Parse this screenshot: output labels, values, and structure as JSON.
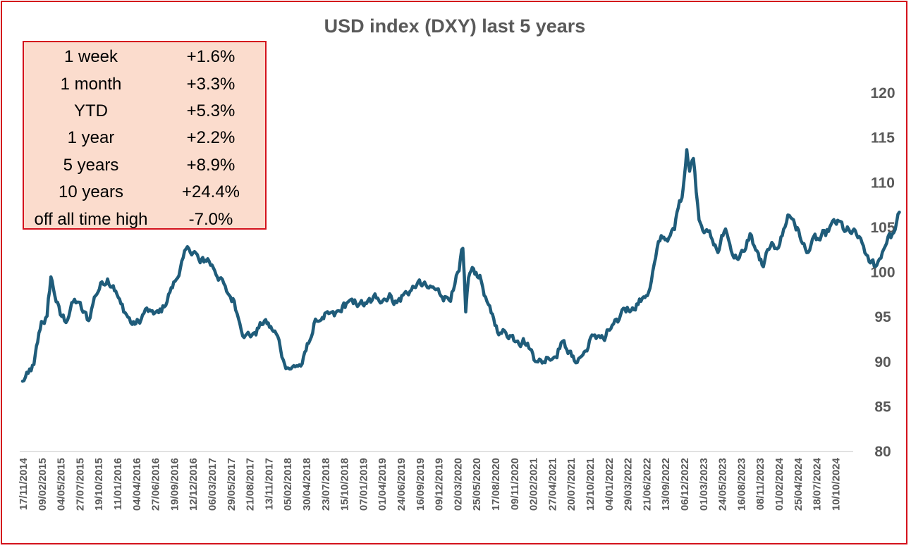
{
  "chart_data": {
    "type": "line",
    "title": "USD index (DXY) last 5 years",
    "xlabel": "",
    "ylabel": "",
    "ylim": [
      80,
      120
    ],
    "yticks": [
      80,
      85,
      90,
      95,
      100,
      105,
      110,
      115,
      120
    ],
    "x_tick_labels": [
      "17/11/2014",
      "09/02/2015",
      "04/05/2015",
      "27/07/2015",
      "19/10/2015",
      "11/01/2016",
      "04/04/2016",
      "27/06/2016",
      "19/09/2016",
      "12/12/2016",
      "06/03/2017",
      "29/05/2017",
      "21/08/2017",
      "13/11/2017",
      "05/02/2018",
      "30/04/2018",
      "23/07/2018",
      "15/10/2018",
      "07/01/2019",
      "01/04/2019",
      "24/06/2019",
      "16/09/2019",
      "09/12/2019",
      "02/03/2020",
      "25/05/2020",
      "17/08/2020",
      "09/11/2020",
      "02/02/2021",
      "27/04/2021",
      "20/07/2021",
      "12/10/2021",
      "04/01/2022",
      "29/03/2022",
      "21/06/2022",
      "13/09/2022",
      "06/12/2022",
      "01/03/2023",
      "24/05/2023",
      "16/08/2023",
      "08/11/2023",
      "01/02/2024",
      "25/04/2024",
      "18/07/2024",
      "10/10/2024"
    ],
    "series": [
      {
        "name": "USD index (DXY)",
        "color": "#1f5c7a",
        "points": [
          [
            0,
            87.8
          ],
          [
            0.3,
            88.6
          ],
          [
            0.6,
            89.6
          ],
          [
            1,
            94.5
          ],
          [
            1.3,
            95
          ],
          [
            1.5,
            99.5
          ],
          [
            1.7,
            97.5
          ],
          [
            2,
            95.2
          ],
          [
            2.3,
            94.5
          ],
          [
            2.6,
            96.5
          ],
          [
            2.9,
            96.7
          ],
          [
            3.2,
            95.5
          ],
          [
            3.5,
            94.6
          ],
          [
            3.8,
            97.2
          ],
          [
            4.2,
            98.9
          ],
          [
            4.5,
            99.3
          ],
          [
            4.8,
            98.6
          ],
          [
            5.2,
            96.4
          ],
          [
            5.5,
            95.3
          ],
          [
            5.8,
            94.2
          ],
          [
            6.2,
            94.4
          ],
          [
            6.5,
            95.8
          ],
          [
            6.8,
            95.5
          ],
          [
            7.2,
            95.4
          ],
          [
            7.5,
            96.2
          ],
          [
            7.8,
            97.8
          ],
          [
            8.2,
            99.5
          ],
          [
            8.5,
            101.5
          ],
          [
            8.8,
            102.6
          ],
          [
            9.1,
            102.3
          ],
          [
            9.4,
            101
          ],
          [
            9.8,
            101.5
          ],
          [
            10.1,
            100.5
          ],
          [
            10.5,
            99.3
          ],
          [
            10.8,
            97.7
          ],
          [
            11.2,
            96.8
          ],
          [
            11.5,
            94.4
          ],
          [
            11.8,
            93
          ],
          [
            12.2,
            93.1
          ],
          [
            12.5,
            93.8
          ],
          [
            12.8,
            94.6
          ],
          [
            13.2,
            93.6
          ],
          [
            13.5,
            92.8
          ],
          [
            13.8,
            90.2
          ],
          [
            14.2,
            89.2
          ],
          [
            14.5,
            89.6
          ],
          [
            14.8,
            89.7
          ],
          [
            15.2,
            92.5
          ],
          [
            15.5,
            94.6
          ],
          [
            15.8,
            94.8
          ],
          [
            16.2,
            95.2
          ],
          [
            16.5,
            95.1
          ],
          [
            16.8,
            95.6
          ],
          [
            17.2,
            96.7
          ],
          [
            17.5,
            96.4
          ],
          [
            17.8,
            96.5
          ],
          [
            18.2,
            96.4
          ],
          [
            18.5,
            96.8
          ],
          [
            18.8,
            97.2
          ],
          [
            19.2,
            97.1
          ],
          [
            19.5,
            97.4
          ],
          [
            19.8,
            96.6
          ],
          [
            20.2,
            97.6
          ],
          [
            20.5,
            97.9
          ],
          [
            20.8,
            98.4
          ],
          [
            21.2,
            98.7
          ],
          [
            21.5,
            98.1
          ],
          [
            21.8,
            98.1
          ],
          [
            22.2,
            97.4
          ],
          [
            22.5,
            97.2
          ],
          [
            22.8,
            97.9
          ],
          [
            23.1,
            100
          ],
          [
            23.3,
            102.5
          ],
          [
            23.45,
            95.6
          ],
          [
            23.6,
            99.4
          ],
          [
            23.8,
            100.4
          ],
          [
            24.2,
            99.6
          ],
          [
            24.5,
            97.2
          ],
          [
            24.8,
            95.3
          ],
          [
            25.2,
            93.2
          ],
          [
            25.5,
            93.4
          ],
          [
            25.8,
            93
          ],
          [
            26.2,
            92.5
          ],
          [
            26.5,
            92.6
          ],
          [
            26.8,
            91.6
          ],
          [
            27.2,
            90.2
          ],
          [
            27.5,
            89.9
          ],
          [
            27.8,
            90.6
          ],
          [
            28.2,
            90.7
          ],
          [
            28.5,
            92.2
          ],
          [
            28.8,
            91.5
          ],
          [
            29.2,
            90.1
          ],
          [
            29.5,
            90.5
          ],
          [
            29.8,
            91.2
          ],
          [
            30.2,
            92.9
          ],
          [
            30.5,
            93
          ],
          [
            30.8,
            92.4
          ],
          [
            31.2,
            94
          ],
          [
            31.5,
            94.2
          ],
          [
            31.8,
            96
          ],
          [
            32.2,
            95.9
          ],
          [
            32.5,
            96.5
          ],
          [
            32.8,
            97
          ],
          [
            33.2,
            98.2
          ],
          [
            33.5,
            101.5
          ],
          [
            33.8,
            104
          ],
          [
            34.2,
            103.8
          ],
          [
            34.5,
            104.7
          ],
          [
            34.7,
            107.3
          ],
          [
            34.9,
            108.5
          ],
          [
            35.15,
            113.8
          ],
          [
            35.3,
            111.3
          ],
          [
            35.5,
            112.8
          ],
          [
            35.8,
            106
          ],
          [
            36.2,
            104.7
          ],
          [
            36.5,
            103.5
          ],
          [
            36.8,
            102.2
          ],
          [
            37.2,
            104.9
          ],
          [
            37.5,
            102.5
          ],
          [
            37.8,
            101.6
          ],
          [
            38.2,
            102.2
          ],
          [
            38.5,
            104.3
          ],
          [
            38.8,
            102.5
          ],
          [
            39.2,
            100.5
          ],
          [
            39.5,
            102.6
          ],
          [
            39.8,
            102.6
          ],
          [
            40.2,
            104.1
          ],
          [
            40.5,
            106.4
          ],
          [
            40.8,
            105.9
          ],
          [
            41.2,
            103.6
          ],
          [
            41.5,
            102.1
          ],
          [
            41.8,
            103.6
          ],
          [
            42.2,
            103.6
          ],
          [
            42.5,
            104.1
          ],
          [
            42.8,
            105.3
          ],
          [
            43.2,
            105.6
          ],
          [
            43.5,
            104.6
          ],
          [
            43.8,
            104.4
          ],
          [
            44.2,
            103.9
          ],
          [
            44.5,
            102.9
          ],
          [
            44.8,
            101
          ],
          [
            45.2,
            100.8
          ],
          [
            45.5,
            102.3
          ],
          [
            45.8,
            104
          ],
          [
            46.1,
            104.3
          ],
          [
            46.4,
            106.7
          ]
        ]
      }
    ]
  },
  "stats_table": {
    "rows": [
      {
        "label": "1 week",
        "value": "+1.6%"
      },
      {
        "label": "1 month",
        "value": "+3.3%"
      },
      {
        "label": "YTD",
        "value": "+5.3%"
      },
      {
        "label": "1 year",
        "value": "+2.2%"
      },
      {
        "label": "5 years",
        "value": "+8.9%"
      },
      {
        "label": "10 years",
        "value": "+24.4%"
      },
      {
        "label": "off all time high",
        "value": "-7.0%"
      }
    ]
  }
}
